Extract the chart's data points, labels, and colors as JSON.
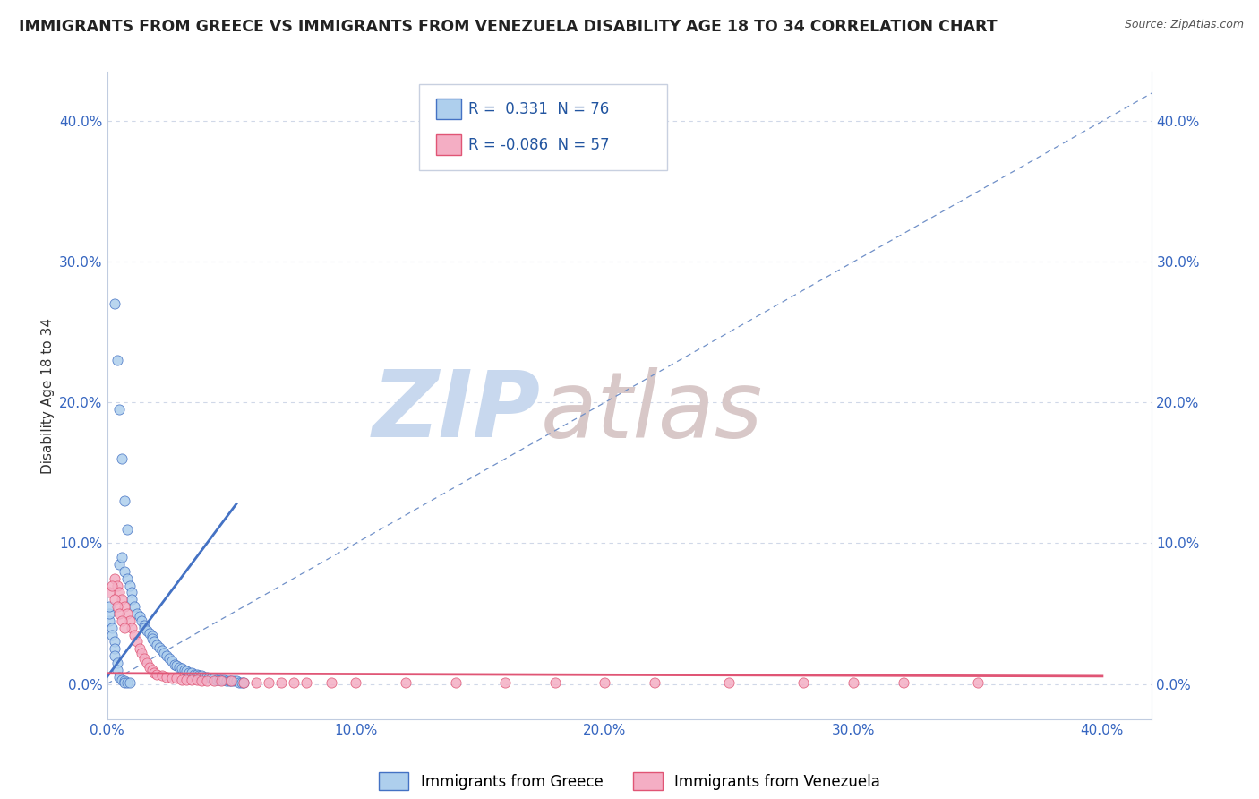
{
  "title": "IMMIGRANTS FROM GREECE VS IMMIGRANTS FROM VENEZUELA DISABILITY AGE 18 TO 34 CORRELATION CHART",
  "source_text": "Source: ZipAtlas.com",
  "ylabel": "Disability Age 18 to 34",
  "xlim": [
    0.0,
    0.42
  ],
  "ylim": [
    -0.025,
    0.435
  ],
  "xticks": [
    0.0,
    0.1,
    0.2,
    0.3,
    0.4
  ],
  "yticks": [
    0.0,
    0.1,
    0.2,
    0.3,
    0.4
  ],
  "xticklabels": [
    "0.0%",
    "10.0%",
    "20.0%",
    "30.0%",
    "40.0%"
  ],
  "yticklabels": [
    "0.0%",
    "10.0%",
    "20.0%",
    "30.0%",
    "40.0%"
  ],
  "greece_R": 0.331,
  "greece_N": 76,
  "venezuela_R": -0.086,
  "venezuela_N": 57,
  "greece_color": "#aecfed",
  "venezuela_color": "#f4aec4",
  "greece_edge_color": "#4472c4",
  "venezuela_edge_color": "#e05575",
  "diag_line_color": "#7090c8",
  "watermark_zip_color": "#c8d8ee",
  "watermark_atlas_color": "#d8c8c8",
  "background_color": "#ffffff",
  "grid_color": "#d0d8e8",
  "title_fontsize": 12.5,
  "axis_label_fontsize": 11,
  "tick_fontsize": 11,
  "tick_color": "#3565c0",
  "legend_text_color": "#2255a0",
  "greece_x": [
    0.005,
    0.006,
    0.007,
    0.008,
    0.009,
    0.01,
    0.01,
    0.011,
    0.012,
    0.013,
    0.014,
    0.015,
    0.015,
    0.016,
    0.017,
    0.018,
    0.018,
    0.019,
    0.02,
    0.021,
    0.022,
    0.023,
    0.024,
    0.025,
    0.026,
    0.027,
    0.028,
    0.029,
    0.03,
    0.031,
    0.032,
    0.033,
    0.034,
    0.035,
    0.036,
    0.037,
    0.038,
    0.039,
    0.04,
    0.041,
    0.042,
    0.043,
    0.044,
    0.045,
    0.046,
    0.047,
    0.048,
    0.049,
    0.05,
    0.051,
    0.052,
    0.053,
    0.054,
    0.055,
    0.001,
    0.001,
    0.001,
    0.002,
    0.002,
    0.003,
    0.003,
    0.003,
    0.004,
    0.004,
    0.005,
    0.006,
    0.007,
    0.007,
    0.008,
    0.009,
    0.003,
    0.004,
    0.005,
    0.006,
    0.007,
    0.008
  ],
  "greece_y": [
    0.085,
    0.09,
    0.08,
    0.075,
    0.07,
    0.065,
    0.06,
    0.055,
    0.05,
    0.048,
    0.045,
    0.042,
    0.04,
    0.038,
    0.036,
    0.034,
    0.032,
    0.03,
    0.028,
    0.026,
    0.024,
    0.022,
    0.02,
    0.018,
    0.016,
    0.014,
    0.013,
    0.012,
    0.011,
    0.01,
    0.009,
    0.008,
    0.008,
    0.007,
    0.007,
    0.006,
    0.006,
    0.005,
    0.005,
    0.004,
    0.004,
    0.004,
    0.003,
    0.003,
    0.003,
    0.003,
    0.002,
    0.002,
    0.002,
    0.002,
    0.002,
    0.001,
    0.001,
    0.001,
    0.045,
    0.05,
    0.055,
    0.04,
    0.035,
    0.03,
    0.025,
    0.02,
    0.015,
    0.01,
    0.005,
    0.003,
    0.002,
    0.001,
    0.001,
    0.001,
    0.27,
    0.23,
    0.195,
    0.16,
    0.13,
    0.11
  ],
  "venezuela_x": [
    0.003,
    0.004,
    0.005,
    0.006,
    0.007,
    0.008,
    0.009,
    0.01,
    0.011,
    0.012,
    0.013,
    0.014,
    0.015,
    0.016,
    0.017,
    0.018,
    0.019,
    0.02,
    0.022,
    0.024,
    0.026,
    0.028,
    0.03,
    0.032,
    0.034,
    0.036,
    0.038,
    0.04,
    0.043,
    0.046,
    0.05,
    0.055,
    0.06,
    0.065,
    0.07,
    0.075,
    0.08,
    0.09,
    0.1,
    0.12,
    0.14,
    0.16,
    0.18,
    0.2,
    0.22,
    0.25,
    0.28,
    0.3,
    0.32,
    0.35,
    0.001,
    0.002,
    0.003,
    0.004,
    0.005,
    0.006,
    0.007
  ],
  "venezuela_y": [
    0.075,
    0.07,
    0.065,
    0.06,
    0.055,
    0.05,
    0.045,
    0.04,
    0.035,
    0.03,
    0.025,
    0.022,
    0.018,
    0.015,
    0.012,
    0.01,
    0.008,
    0.007,
    0.006,
    0.005,
    0.004,
    0.004,
    0.003,
    0.003,
    0.003,
    0.003,
    0.002,
    0.002,
    0.002,
    0.002,
    0.002,
    0.001,
    0.001,
    0.001,
    0.001,
    0.001,
    0.001,
    0.001,
    0.001,
    0.001,
    0.001,
    0.001,
    0.001,
    0.001,
    0.001,
    0.001,
    0.001,
    0.001,
    0.001,
    0.001,
    0.065,
    0.07,
    0.06,
    0.055,
    0.05,
    0.045,
    0.04
  ],
  "greece_trend_x0": 0.0,
  "greece_trend_x1": 0.052,
  "greece_trend_y0": 0.005,
  "greece_trend_y1": 0.128,
  "venezuela_trend_x0": 0.0,
  "venezuela_trend_x1": 0.4,
  "venezuela_trend_y0": 0.0075,
  "venezuela_trend_y1": 0.0055
}
